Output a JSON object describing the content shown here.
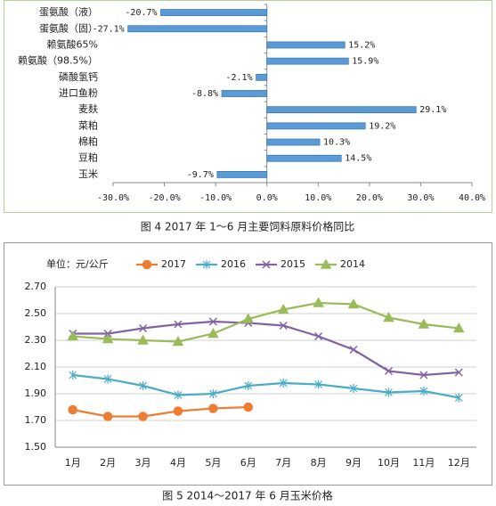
{
  "chart_data": [
    {
      "type": "bar",
      "orientation": "horizontal",
      "title": "图 4   2017 年 1～6 月主要饲料原料价格同比",
      "categories": [
        "蛋氨酸（液）",
        "蛋氨酸（固）",
        "赖氨酸65%",
        "赖氨酸（98.5%）",
        "磷酸氢钙",
        "进口鱼粉",
        "麦麸",
        "菜粕",
        "棉粕",
        "豆粕",
        "玉米"
      ],
      "values": [
        -20.7,
        -27.1,
        15.2,
        15.9,
        -2.1,
        -8.8,
        29.1,
        19.2,
        10.3,
        14.5,
        -9.7
      ],
      "value_labels": [
        "-20.7%",
        "-27.1%",
        "15.2%",
        "15.9%",
        "-2.1%",
        "-8.8%",
        "29.1%",
        "19.2%",
        "10.3%",
        "14.5%",
        "-9.7%"
      ],
      "color": "#5b9bd5",
      "xlim": [
        -30,
        40
      ],
      "xticks": [
        {
          "value": -30,
          "label": "-30.0%"
        },
        {
          "value": -20,
          "label": "-20.0%"
        },
        {
          "value": -10,
          "label": "-10.0%"
        },
        {
          "value": 0,
          "label": "0.0%"
        },
        {
          "value": 10,
          "label": "10.0%"
        },
        {
          "value": 20,
          "label": "20.0%"
        },
        {
          "value": 30,
          "label": "30.0%"
        },
        {
          "value": 40,
          "label": "40.0%"
        }
      ],
      "grid": false
    },
    {
      "type": "line",
      "title": "图 5   2014～2017 年 6 月玉米价格",
      "annotation": "单位：元/公斤",
      "categories": [
        "1月",
        "2月",
        "3月",
        "4月",
        "5月",
        "6月",
        "7月",
        "8月",
        "9月",
        "10月",
        "11月",
        "12月"
      ],
      "series": [
        {
          "name": "2017",
          "color": "#ed7d31",
          "marker": "circle",
          "values": [
            1.78,
            1.73,
            1.73,
            1.77,
            1.79,
            1.8,
            null,
            null,
            null,
            null,
            null,
            null
          ]
        },
        {
          "name": "2016",
          "color": "#4bacc6",
          "marker": "asterisk",
          "values": [
            2.04,
            2.01,
            1.96,
            1.89,
            1.9,
            1.96,
            1.98,
            1.97,
            1.94,
            1.91,
            1.92,
            1.87
          ]
        },
        {
          "name": "2015",
          "color": "#8064a2",
          "marker": "cross",
          "values": [
            2.35,
            2.35,
            2.39,
            2.42,
            2.44,
            2.43,
            2.41,
            2.33,
            2.23,
            2.07,
            2.04,
            2.06
          ]
        },
        {
          "name": "2014",
          "color": "#9bbb59",
          "marker": "triangle",
          "values": [
            2.33,
            2.31,
            2.3,
            2.29,
            2.35,
            2.46,
            2.53,
            2.58,
            2.57,
            2.47,
            2.42,
            2.39
          ]
        }
      ],
      "ylim": [
        1.5,
        2.7
      ],
      "yticks": [
        {
          "value": 1.5,
          "label": "1.50"
        },
        {
          "value": 1.7,
          "label": "1.70"
        },
        {
          "value": 1.9,
          "label": "1.90"
        },
        {
          "value": 2.1,
          "label": "2.10"
        },
        {
          "value": 2.3,
          "label": "2.30"
        },
        {
          "value": 2.5,
          "label": "2.50"
        },
        {
          "value": 2.7,
          "label": "2.70"
        }
      ],
      "grid": true,
      "legend": "top"
    }
  ]
}
